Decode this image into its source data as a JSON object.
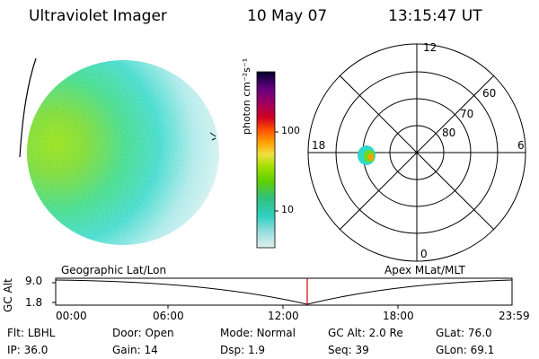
{
  "header": {
    "instrument": "Ultraviolet Imager",
    "date": "10 May 07",
    "time": "13:15:47 UT"
  },
  "colorbar": {
    "unit_label": "photon cm⁻²s⁻¹",
    "ticks": [
      "100",
      "10"
    ],
    "colors": [
      "#000030",
      "#3a0055",
      "#6a0080",
      "#a00060",
      "#d00020",
      "#ff5000",
      "#ffa000",
      "#f0e040",
      "#a0e000",
      "#60d000",
      "#30c080",
      "#30d0c0",
      "#a0e0e0",
      "#e0f0f0"
    ]
  },
  "polar_plot": {
    "mlt_labels": {
      "top": "12",
      "left": "18",
      "right": "6",
      "bottom": "0"
    },
    "lat_labels": [
      "60",
      "70",
      "80"
    ]
  },
  "timeline": {
    "left_label": "Geographic Lat/Lon",
    "right_label": "Apex MLat/MLT",
    "axis_title": "GC Alt",
    "y_ticks": [
      "9.0",
      "1.8"
    ],
    "x_ticks": [
      "00:00",
      "06:00",
      "12:00",
      "18:00",
      "23:59"
    ],
    "marker_color": "#d00000"
  },
  "status": {
    "row1": [
      {
        "label": "Flt:",
        "value": "LBHL"
      },
      {
        "label": "Door:",
        "value": "Open"
      },
      {
        "label": "Mode:",
        "value": "Normal"
      },
      {
        "label": "GC Alt:",
        "value": "2.0 Re"
      },
      {
        "label": "GLat:",
        "value": "76.0"
      }
    ],
    "row2": [
      {
        "label": "IP:",
        "value": "36.0"
      },
      {
        "label": "Gain:",
        "value": "14"
      },
      {
        "label": "Dsp:",
        "value": "1.9"
      },
      {
        "label": "Seq:",
        "value": "39"
      },
      {
        "label": "GLon:",
        "value": "69.1"
      }
    ]
  }
}
